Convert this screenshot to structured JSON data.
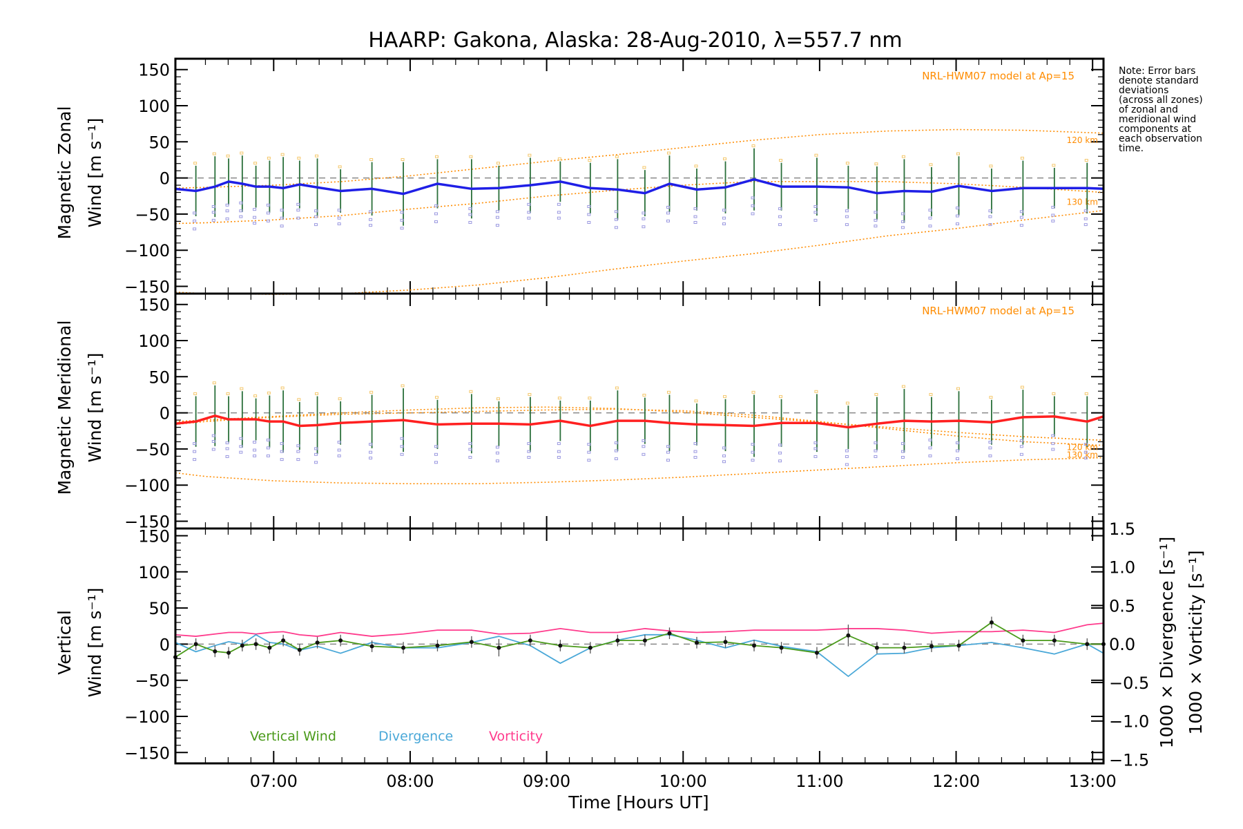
{
  "figure": {
    "title": "HAARP: Gakona,  Alaska: 28-Aug-2010, λ=557.7 nm",
    "note_lines": [
      "Note: Error bars",
      "denote standard",
      "deviations",
      "(across all zones)",
      "of zonal and",
      "meridional wind",
      "components at",
      "each observation",
      "time."
    ]
  },
  "colors": {
    "zonal": "#1f1fe6",
    "meridional": "#ff2020",
    "vertical": "#4a9a1a",
    "divergence": "#4aa8d8",
    "vorticity": "#ff3a8c",
    "model": "#ff8c00",
    "zone_points": "#9a98e0",
    "error_bar": "#2a6f3a",
    "zero_line": "#888888"
  },
  "chart_data": [
    {
      "type": "line",
      "panel": "zonal",
      "ylabel_lines": [
        "Magnetic Zonal",
        "Wind [m s⁻¹]"
      ],
      "model_label": "NRL-HWM07 model at Ap=15",
      "altitude_labels": [
        "120 km",
        "130 km"
      ],
      "ylim": [
        -160,
        165
      ],
      "yticks": [
        150,
        100,
        50,
        0,
        -50,
        -100,
        -150
      ],
      "ytick_labels": [
        "150",
        "100",
        "50",
        "0",
        "−50",
        "−100",
        "−150"
      ],
      "xlim": [
        6.28,
        13.08
      ],
      "series": [
        {
          "x": [
            6.28,
            6.43,
            6.57,
            6.67,
            6.77,
            6.87,
            6.97,
            7.07,
            7.19,
            7.32,
            7.49,
            7.72,
            7.95,
            8.2,
            8.45,
            8.65,
            8.88,
            9.1,
            9.32,
            9.52,
            9.72,
            9.9,
            10.1,
            10.31,
            10.52,
            10.72,
            10.98,
            11.21,
            11.42,
            11.62,
            11.82,
            12.02,
            12.26,
            12.49,
            12.72,
            12.96,
            13.08
          ],
          "y": [
            -15,
            -18,
            -12,
            -5,
            -8,
            -12,
            -12,
            -14,
            -9,
            -13,
            -18,
            -15,
            -22,
            -8,
            -15,
            -14,
            -10,
            -5,
            -14,
            -16,
            -21,
            -8,
            -16,
            -13,
            -2,
            -12,
            -12,
            -13,
            -21,
            -18,
            -19,
            -11,
            -18,
            -14,
            -14,
            -14,
            -15
          ]
        }
      ],
      "model_curves": [
        {
          "x": [
            6.28,
            6.5,
            7.0,
            7.5,
            8.0,
            8.5,
            9.0,
            9.5,
            10.0,
            10.5,
            11.0,
            11.5,
            12.0,
            12.5,
            13.08
          ],
          "y": [
            -14,
            -13,
            -10,
            -5,
            3,
            13,
            23,
            32,
            42,
            52,
            60,
            65,
            67,
            66,
            62
          ]
        },
        {
          "x": [
            6.28,
            6.5,
            7.0,
            7.5,
            8.0,
            8.5,
            9.0,
            9.5,
            10.0,
            10.5,
            11.0,
            11.5,
            12.0,
            12.5,
            13.08
          ],
          "y": [
            -63,
            -62,
            -58,
            -52,
            -43,
            -35,
            -25,
            -17,
            -10,
            -5,
            -5,
            -5,
            -8,
            -13,
            -20
          ]
        },
        {
          "x": [
            6.28,
            6.5,
            7.0,
            7.5,
            8.0,
            8.5,
            9.0,
            9.5,
            10.0,
            10.5,
            11.0,
            11.5,
            12.0,
            12.5,
            13.08
          ],
          "y": [
            -158,
            -160,
            -161,
            -160,
            -155,
            -148,
            -138,
            -126,
            -115,
            -105,
            -93,
            -80,
            -70,
            -58,
            -45
          ]
        }
      ]
    },
    {
      "type": "line",
      "panel": "meridional",
      "ylabel_lines": [
        "Magnetic Meridional",
        "Wind [m s⁻¹]"
      ],
      "model_label": "NRL-HWM07 model at Ap=15",
      "altitude_labels": [
        "120 km",
        "130 km"
      ],
      "ylim": [
        -160,
        165
      ],
      "yticks": [
        150,
        100,
        50,
        0,
        -50,
        -100,
        -150
      ],
      "ytick_labels": [
        "150",
        "100",
        "50",
        "0",
        "−50",
        "−100",
        "−150"
      ],
      "xlim": [
        6.28,
        13.08
      ],
      "series": [
        {
          "x": [
            6.28,
            6.43,
            6.57,
            6.67,
            6.77,
            6.87,
            6.97,
            7.07,
            7.19,
            7.32,
            7.49,
            7.72,
            7.95,
            8.2,
            8.45,
            8.65,
            8.88,
            9.1,
            9.32,
            9.52,
            9.72,
            9.9,
            10.1,
            10.31,
            10.52,
            10.72,
            10.98,
            11.21,
            11.42,
            11.62,
            11.82,
            12.02,
            12.26,
            12.49,
            12.72,
            12.96,
            13.08
          ],
          "y": [
            -15,
            -12,
            -4,
            -9,
            -9,
            -9,
            -12,
            -12,
            -18,
            -17,
            -14,
            -12,
            -10,
            -16,
            -15,
            -15,
            -16,
            -11,
            -18,
            -11,
            -11,
            -14,
            -16,
            -17,
            -18,
            -14,
            -14,
            -20,
            -15,
            -11,
            -12,
            -11,
            -13,
            -6,
            -5,
            -12,
            -5
          ]
        }
      ],
      "model_curves": [
        {
          "x": [
            6.28,
            6.5,
            7.0,
            7.5,
            8.0,
            8.5,
            9.0,
            9.5,
            10.0,
            10.5,
            11.0,
            11.5,
            12.0,
            12.5,
            13.08
          ],
          "y": [
            -12,
            -10,
            -5,
            0,
            4,
            7,
            8,
            6,
            1,
            -6,
            -13,
            -20,
            -27,
            -33,
            -38
          ]
        },
        {
          "x": [
            6.28,
            6.5,
            7.0,
            7.5,
            8.0,
            8.5,
            9.0,
            9.5,
            10.0,
            10.5,
            11.0,
            11.5,
            12.0,
            12.5,
            13.08
          ],
          "y": [
            -16,
            -12,
            -6,
            -2,
            0,
            2,
            4,
            5,
            3,
            -3,
            -12,
            -22,
            -32,
            -40,
            -45
          ]
        },
        {
          "x": [
            6.28,
            6.5,
            7.0,
            7.5,
            8.0,
            8.5,
            9.0,
            9.5,
            10.0,
            10.5,
            11.0,
            11.5,
            12.0,
            12.5,
            13.08
          ],
          "y": [
            -83,
            -88,
            -94,
            -97,
            -98,
            -98,
            -96,
            -93,
            -89,
            -84,
            -79,
            -74,
            -69,
            -65,
            -62
          ]
        }
      ]
    },
    {
      "type": "line",
      "panel": "vertical",
      "ylabel_lines": [
        "Vertical",
        "Wind [m s⁻¹]"
      ],
      "right_ylabel_1": "1000 × Divergence [s⁻¹]",
      "right_ylabel_2": "1000 × Vorticity [s⁻¹]",
      "ylim": [
        -165,
        160
      ],
      "yticks": [
        150,
        100,
        50,
        0,
        -50,
        -100,
        -150
      ],
      "ytick_labels": [
        "150",
        "100",
        "50",
        "0",
        "−50",
        "−100",
        "−150"
      ],
      "y2lim": [
        -1.55,
        1.5
      ],
      "y2ticks": [
        1.5,
        1.0,
        0.5,
        0.0,
        -0.5,
        -1.0,
        -1.5
      ],
      "y2tick_labels": [
        "1.5",
        "1.0",
        "0.5",
        "0.0",
        "−0.5",
        "−1.0",
        "−1.5"
      ],
      "xlim": [
        6.28,
        13.08
      ],
      "xticks": [
        7,
        8,
        9,
        10,
        11,
        12,
        13
      ],
      "xtick_labels": [
        "07:00",
        "08:00",
        "09:00",
        "10:00",
        "11:00",
        "12:00",
        "13:00"
      ],
      "xlabel": "Time [Hours UT]",
      "legend": [
        "Vertical Wind",
        "Divergence",
        "Vorticity"
      ],
      "series": [
        {
          "name": "Vertical Wind",
          "axis": "left",
          "x": [
            6.28,
            6.43,
            6.57,
            6.67,
            6.77,
            6.87,
            6.97,
            7.07,
            7.19,
            7.32,
            7.49,
            7.72,
            7.95,
            8.2,
            8.45,
            8.65,
            8.88,
            9.1,
            9.32,
            9.52,
            9.72,
            9.9,
            10.1,
            10.31,
            10.52,
            10.72,
            10.98,
            11.21,
            11.42,
            11.62,
            11.82,
            12.02,
            12.26,
            12.49,
            12.72,
            12.96,
            13.08
          ],
          "y": [
            -18,
            0,
            -10,
            -12,
            -2,
            0,
            -5,
            5,
            -8,
            2,
            5,
            -3,
            -5,
            -2,
            3,
            -5,
            5,
            -2,
            -5,
            5,
            5,
            15,
            2,
            3,
            -2,
            -5,
            -12,
            12,
            -5,
            -5,
            -3,
            -2,
            30,
            5,
            5,
            0,
            0
          ]
        },
        {
          "name": "Divergence",
          "axis": "right",
          "x": [
            6.28,
            6.43,
            6.57,
            6.67,
            6.77,
            6.87,
            6.97,
            7.07,
            7.19,
            7.32,
            7.49,
            7.72,
            7.95,
            8.2,
            8.45,
            8.65,
            8.88,
            9.1,
            9.32,
            9.52,
            9.72,
            9.9,
            10.1,
            10.31,
            10.52,
            10.72,
            10.98,
            11.21,
            11.42,
            11.62,
            11.82,
            12.02,
            12.26,
            12.49,
            12.72,
            12.96,
            13.08
          ],
          "y": [
            0.02,
            -0.1,
            -0.02,
            0.03,
            0.0,
            0.12,
            0.02,
            0.0,
            -0.08,
            -0.03,
            -0.12,
            0.02,
            -0.05,
            -0.05,
            0.02,
            0.1,
            -0.02,
            -0.25,
            -0.05,
            0.05,
            0.12,
            0.12,
            0.05,
            -0.05,
            0.05,
            -0.03,
            -0.1,
            -0.42,
            -0.13,
            -0.12,
            -0.05,
            -0.02,
            0.02,
            -0.05,
            -0.13,
            0.0,
            -0.12
          ]
        },
        {
          "name": "Vorticity",
          "axis": "right",
          "x": [
            6.28,
            6.43,
            6.57,
            6.67,
            6.77,
            6.87,
            6.97,
            7.07,
            7.19,
            7.32,
            7.49,
            7.72,
            7.95,
            8.2,
            8.45,
            8.65,
            8.88,
            9.1,
            9.32,
            9.52,
            9.72,
            9.9,
            10.1,
            10.31,
            10.52,
            10.72,
            10.98,
            11.21,
            11.42,
            11.62,
            11.82,
            12.02,
            12.26,
            12.49,
            12.72,
            12.96,
            13.08
          ],
          "y": [
            0.12,
            0.1,
            0.13,
            0.15,
            0.15,
            0.13,
            0.15,
            0.16,
            0.12,
            0.1,
            0.15,
            0.1,
            0.13,
            0.18,
            0.18,
            0.13,
            0.14,
            0.2,
            0.15,
            0.15,
            0.2,
            0.17,
            0.15,
            0.16,
            0.18,
            0.18,
            0.18,
            0.2,
            0.2,
            0.18,
            0.14,
            0.16,
            0.16,
            0.18,
            0.15,
            0.25,
            0.27
          ]
        }
      ],
      "point_error_bars": [
        8,
        8,
        8,
        8,
        8,
        8,
        8,
        8,
        8,
        8,
        8,
        8,
        8,
        8,
        8,
        12,
        8,
        8,
        8,
        8,
        8,
        8,
        8,
        8,
        8,
        8,
        8,
        15,
        8,
        8,
        8,
        8,
        8,
        8,
        8,
        8,
        8
      ]
    }
  ]
}
